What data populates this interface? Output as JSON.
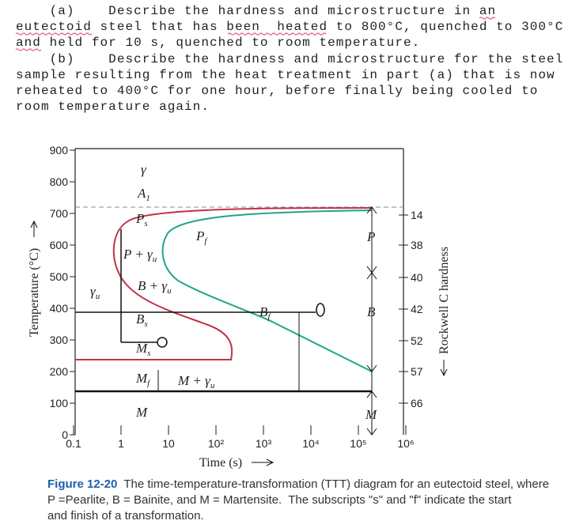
{
  "question": {
    "lines": [
      "    (a)    Describe the hardness and microstructure in an",
      "eutectoid steel that has been  heated to 800°C, quenched to 300°C",
      "and held for 10 s, quenched to room temperature.",
      "    (b)    Describe the hardness and microstructure for the steel",
      "sample resulting from the heat treatment in part (a) that is now",
      "reheated to 400°C for one hour, before finally being cooled to",
      "room temperature again."
    ]
  },
  "figure": {
    "y_axis_title": "Temperature (°C)",
    "x_axis_title": "Time (s)",
    "right_axis_title": "Rockwell C hardness",
    "yticks": [
      "900",
      "800",
      "700",
      "600",
      "500",
      "400",
      "300",
      "200",
      "100",
      "0"
    ],
    "xticks": [
      "0.1",
      "1",
      "10",
      "10²",
      "10³",
      "10⁴",
      "10⁵",
      "10⁶"
    ],
    "hardness_ticks": [
      "14",
      "38",
      "40",
      "42",
      "52",
      "57",
      "66"
    ],
    "labels": {
      "gamma": {
        "main": "γ"
      },
      "a1": {
        "main": "A",
        "sub": "1"
      },
      "ps": {
        "main": "P",
        "sub": "s"
      },
      "pf": {
        "main": "P",
        "sub": "f"
      },
      "p_gamma": {
        "main": "P + γ",
        "sub": "u"
      },
      "b_gamma": {
        "main": "B + γ",
        "sub": "u"
      },
      "gamma_u": {
        "main": "γ",
        "sub": "u"
      },
      "bs": {
        "main": "B",
        "sub": "s"
      },
      "bf": {
        "main": "B",
        "sub": "f"
      },
      "ms": {
        "main": "M",
        "sub": "s"
      },
      "mf": {
        "main": "M",
        "sub": "f"
      },
      "m_gamma": {
        "main": "M + γ",
        "sub": "u"
      },
      "m": {
        "main": "M"
      },
      "right_p": {
        "main": "P"
      },
      "right_b": {
        "main": "B"
      },
      "right_m": {
        "main": "M"
      }
    }
  },
  "caption": {
    "label": "Figure 12-20",
    "lines": [
      "The time-temperature-transformation (TTT) diagram for an eutectoid steel, where",
      "P =Pearlite, B = Bainite, and M = Martensite.  The subscripts \"s\" and \"f\" indicate the start",
      "and finish of a transformation."
    ]
  }
}
